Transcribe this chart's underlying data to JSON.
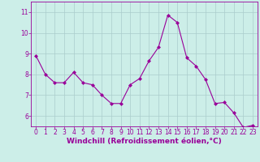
{
  "x": [
    0,
    1,
    2,
    3,
    4,
    5,
    6,
    7,
    8,
    9,
    10,
    11,
    12,
    13,
    14,
    15,
    16,
    17,
    18,
    19,
    20,
    21,
    22,
    23
  ],
  "y": [
    8.9,
    8.0,
    7.6,
    7.6,
    8.1,
    7.6,
    7.5,
    7.0,
    6.6,
    6.6,
    7.5,
    7.8,
    8.65,
    9.3,
    10.85,
    10.5,
    8.8,
    8.4,
    7.75,
    6.6,
    6.65,
    6.15,
    5.45,
    5.55
  ],
  "line_color": "#990099",
  "marker": "D",
  "marker_size": 2.0,
  "bg_color": "#cceee8",
  "grid_color": "#aacccc",
  "xlabel": "Windchill (Refroidissement éolien,°C)",
  "xlabel_color": "#990099",
  "xlabel_fontsize": 6.5,
  "tick_color": "#990099",
  "tick_fontsize": 5.5,
  "yticks": [
    6,
    7,
    8,
    9,
    10,
    11
  ],
  "xticks": [
    0,
    1,
    2,
    3,
    4,
    5,
    6,
    7,
    8,
    9,
    10,
    11,
    12,
    13,
    14,
    15,
    16,
    17,
    18,
    19,
    20,
    21,
    22,
    23
  ],
  "ylim": [
    5.5,
    11.5
  ],
  "xlim": [
    -0.5,
    23.5
  ]
}
